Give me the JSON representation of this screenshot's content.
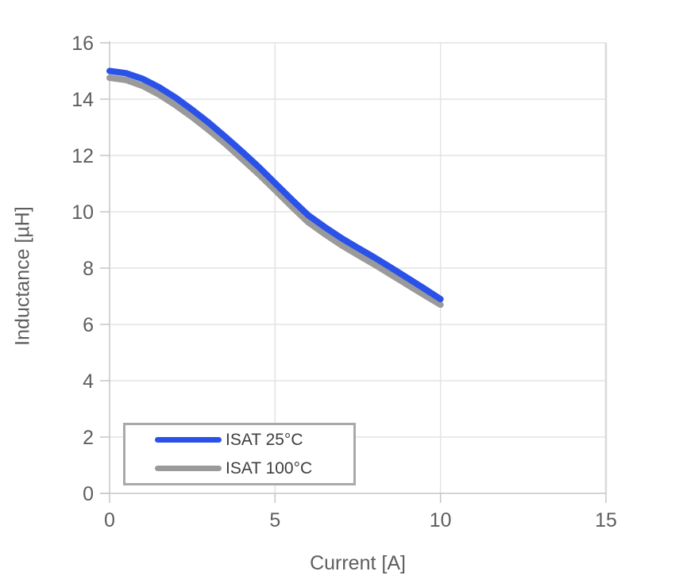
{
  "chart_data": {
    "type": "line",
    "title": "",
    "xlabel": "Current [A]",
    "ylabel": "Inductance [µH]",
    "xlim": [
      0,
      15
    ],
    "ylim": [
      0,
      16
    ],
    "xticks": [
      0,
      5,
      10,
      15
    ],
    "yticks": [
      0,
      2,
      4,
      6,
      8,
      10,
      12,
      14,
      16
    ],
    "grid": true,
    "legend_position": "inside-bottom-left",
    "x": [
      0,
      0.5,
      1,
      1.5,
      2,
      2.5,
      3,
      3.5,
      4,
      4.5,
      5,
      5.5,
      6,
      6.5,
      7,
      7.5,
      8,
      8.5,
      9,
      9.5,
      10
    ],
    "series": [
      {
        "name": "ISAT 25°C",
        "color": "#2a52e8",
        "values": [
          15.0,
          14.92,
          14.72,
          14.42,
          14.05,
          13.62,
          13.16,
          12.66,
          12.14,
          11.6,
          11.02,
          10.44,
          9.88,
          9.46,
          9.07,
          8.72,
          8.38,
          8.02,
          7.65,
          7.28,
          6.9
        ]
      },
      {
        "name": "ISAT 100°C",
        "color": "#9a9a9a",
        "values": [
          14.76,
          14.68,
          14.47,
          14.16,
          13.78,
          13.36,
          12.9,
          12.41,
          11.88,
          11.34,
          10.77,
          10.19,
          9.63,
          9.21,
          8.82,
          8.47,
          8.13,
          7.77,
          7.41,
          7.05,
          6.7
        ]
      }
    ],
    "style": {
      "grid_color": "#e3e3e3",
      "axis_color": "#c6c6c6",
      "right_edge_color": "#d9d9d9",
      "tick_label_color": "#5e5e5e",
      "axis_title_color": "#5e5e5e",
      "legend_border_color": "#a9a9a9",
      "legend_text_color": "#3e3e3e",
      "line_width": 8
    }
  }
}
